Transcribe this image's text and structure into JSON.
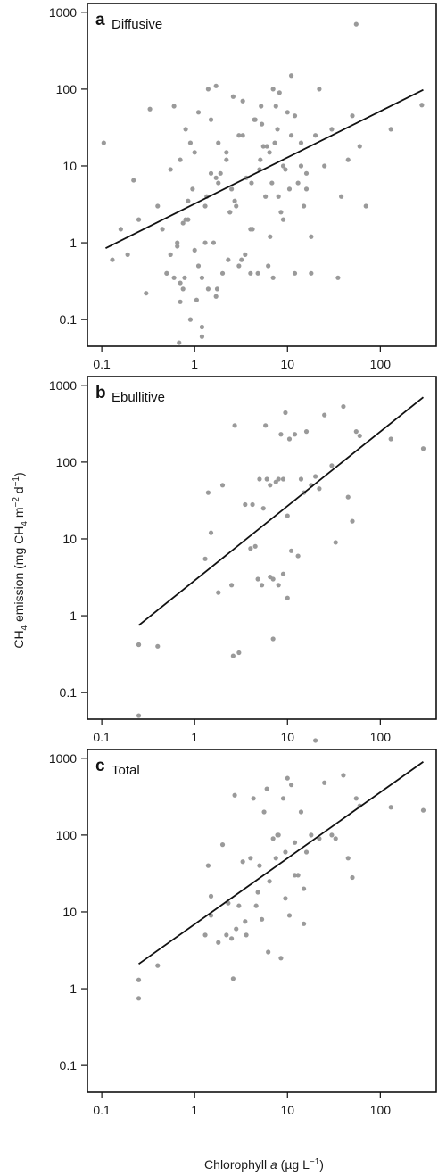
{
  "figure": {
    "ylabel_parts": [
      "CH",
      "4",
      " emission (mg CH",
      "4",
      " m",
      "−2",
      " d",
      "−1",
      ")"
    ],
    "xlabel_parts": [
      "Chlorophyll ",
      "a",
      " (µg L",
      "−1",
      ")"
    ]
  },
  "chart_data": [
    {
      "type": "scatter",
      "panel_letter": "a",
      "title": "Diffusive",
      "x_scale": "log",
      "y_scale": "log",
      "xlim": [
        0.07,
        400
      ],
      "ylim": [
        0.045,
        1300
      ],
      "x_ticks": [
        0.1,
        1,
        10,
        100
      ],
      "x_tick_labels": [
        "0.1",
        "1",
        "10",
        "100"
      ],
      "y_ticks": [
        0.1,
        1,
        10,
        100,
        1000
      ],
      "y_tick_labels": [
        "0.1",
        "1",
        "10",
        "100",
        "1000"
      ],
      "grid": false,
      "legend": "none",
      "fit_line": {
        "x": [
          0.11,
          290
        ],
        "y": [
          0.85,
          98
        ]
      },
      "points": {
        "x": [
          0.105,
          0.13,
          0.16,
          0.19,
          0.22,
          0.25,
          0.3,
          0.33,
          0.4,
          0.45,
          0.5,
          0.55,
          0.6,
          0.65,
          0.7,
          0.75,
          0.8,
          0.85,
          0.9,
          0.95,
          1,
          1.1,
          1.2,
          1.3,
          1.4,
          1.5,
          1.6,
          1.7,
          1.8,
          2,
          2.2,
          2.4,
          2.6,
          2.8,
          3,
          3.3,
          3.6,
          4,
          4.4,
          4.8,
          5.2,
          5.8,
          6.4,
          7,
          7.8,
          8.5,
          9.5,
          10.5,
          12,
          14,
          16,
          18,
          20,
          25,
          30,
          38,
          45,
          50,
          55,
          60,
          70,
          130,
          280,
          0.6,
          0.7,
          0.8,
          1,
          1.2,
          1.5,
          1.8,
          2.2,
          2.7,
          3.3,
          4,
          5,
          6,
          7,
          8,
          9,
          10,
          11,
          13,
          15,
          0.5,
          0.65,
          0.9,
          1.3,
          1.7,
          2.5,
          3.5,
          4.5,
          5.5,
          6.5,
          7.5,
          9,
          11,
          14,
          18,
          0.7,
          0.85,
          1.1,
          1.4,
          1.9,
          2.3,
          3,
          4.2,
          5.3,
          6.8,
          8.2,
          12,
          16,
          22,
          35,
          0.55,
          0.75,
          1.05,
          1.35,
          1.75,
          2.4,
          3.2,
          4.1,
          5.1,
          6.2,
          7.3,
          0.68,
          0.78,
          1.2,
          1.7
        ],
        "y": [
          20,
          0.6,
          1.5,
          0.7,
          6.5,
          2,
          0.22,
          55,
          3,
          1.5,
          0.4,
          9,
          60,
          1,
          0.3,
          0.25,
          30,
          2,
          0.1,
          5,
          15,
          0.5,
          0.06,
          3,
          100,
          8,
          1,
          0.2,
          20,
          0.4,
          12,
          2.5,
          80,
          3,
          0.5,
          25,
          7,
          1.5,
          40,
          0.4,
          60,
          4,
          15,
          100,
          30,
          2.5,
          9,
          5,
          45,
          20,
          8,
          1.2,
          25,
          10,
          30,
          4,
          12,
          45,
          700,
          18,
          3,
          30,
          62,
          0.35,
          12,
          2,
          0.8,
          0.35,
          40,
          6,
          15,
          3.5,
          70,
          0.4,
          9,
          18,
          0.35,
          4,
          10,
          50,
          150,
          6,
          3,
          0.4,
          0.9,
          20,
          1,
          7,
          5,
          0.7,
          40,
          18,
          1.2,
          60,
          2,
          25,
          10,
          0.4,
          0.17,
          3.5,
          50,
          0.25,
          8,
          0.6,
          25,
          1.5,
          35,
          6,
          90,
          0.4,
          5,
          100,
          0.35,
          0.7,
          1.8,
          0.18,
          4,
          0.25,
          2.5,
          0.6,
          6,
          12,
          0.5,
          20,
          0.05,
          0.35,
          0.08,
          110
        ]
      }
    },
    {
      "type": "scatter",
      "panel_letter": "b",
      "title": "Ebullitive",
      "x_scale": "log",
      "y_scale": "log",
      "xlim": [
        0.07,
        400
      ],
      "ylim": [
        0.045,
        1300
      ],
      "x_ticks": [
        0.1,
        1,
        10,
        100
      ],
      "x_tick_labels": [
        "0.1",
        "1",
        "10",
        "100"
      ],
      "y_ticks": [
        0.1,
        1,
        10,
        100,
        1000
      ],
      "y_tick_labels": [
        "0.1",
        "1",
        "10",
        "100",
        "1000"
      ],
      "grid": false,
      "legend": "none",
      "fit_line": {
        "x": [
          0.25,
          290
        ],
        "y": [
          0.75,
          700
        ]
      },
      "points": {
        "x": [
          0.25,
          0.25,
          0.25,
          0.4,
          1.3,
          1.4,
          1.5,
          1.8,
          2,
          2.5,
          2.6,
          2.7,
          3,
          3.5,
          4,
          4.2,
          4.5,
          4.8,
          5,
          5.3,
          5.5,
          5.8,
          6,
          6.5,
          7,
          7.5,
          8,
          8.5,
          9,
          9.5,
          10,
          10.5,
          11,
          12,
          13,
          14,
          15,
          16,
          18,
          20,
          22,
          25,
          30,
          33,
          40,
          45,
          50,
          55,
          60,
          130,
          290,
          8,
          9,
          10,
          7,
          6.5
        ],
        "y": [
          0.05,
          0.42,
          0.42,
          0.4,
          5.5,
          40,
          12,
          2,
          50,
          2.5,
          0.3,
          300,
          0.33,
          28,
          7.5,
          28,
          8,
          3,
          60,
          2.5,
          25,
          300,
          60,
          50,
          3,
          55,
          60,
          230,
          3.5,
          440,
          1.7,
          200,
          7,
          230,
          6,
          60,
          40,
          250,
          50,
          65,
          45,
          410,
          90,
          9,
          530,
          35,
          17,
          250,
          220,
          200,
          150,
          2.5,
          60,
          20,
          0.5,
          3.2
        ]
      }
    },
    {
      "type": "scatter",
      "panel_letter": "c",
      "title": "Total",
      "x_scale": "log",
      "y_scale": "log",
      "xlim": [
        0.07,
        400
      ],
      "ylim": [
        0.045,
        1300
      ],
      "x_ticks": [
        0.1,
        1,
        10,
        100
      ],
      "x_tick_labels": [
        "0.1",
        "1",
        "10",
        "100"
      ],
      "y_ticks": [
        0.1,
        1,
        10,
        100,
        1000
      ],
      "y_tick_labels": [
        "0.1",
        "1",
        "10",
        "100",
        "1000"
      ],
      "grid": false,
      "legend": "none",
      "fit_line": {
        "x": [
          0.25,
          290
        ],
        "y": [
          2.1,
          900
        ]
      },
      "points": {
        "x": [
          0.25,
          0.25,
          0.4,
          1.3,
          1.4,
          1.5,
          1.8,
          2,
          2.2,
          2.5,
          2.6,
          2.7,
          2.8,
          3,
          3.3,
          3.6,
          4,
          4.3,
          4.6,
          5,
          5.3,
          5.6,
          6,
          6.4,
          7,
          7.5,
          8,
          8.5,
          9,
          9.5,
          10,
          10.5,
          11,
          12,
          13,
          14,
          15,
          16,
          18,
          20,
          22,
          25,
          30,
          33,
          40,
          45,
          50,
          55,
          60,
          130,
          290,
          1.5,
          2.3,
          3.5,
          4.8,
          6.2,
          7.8,
          9.5,
          12,
          15
        ],
        "y": [
          0.75,
          1.3,
          2,
          5,
          40,
          16,
          4,
          75,
          5,
          4.5,
          1.35,
          330,
          6,
          12,
          45,
          5,
          50,
          300,
          12,
          40,
          8,
          200,
          400,
          25,
          90,
          50,
          100,
          2.5,
          300,
          60,
          550,
          9,
          450,
          80,
          30,
          200,
          20,
          60,
          100,
          1700,
          90,
          480,
          100,
          90,
          600,
          50,
          28,
          300,
          240,
          230,
          210,
          9,
          13,
          7.5,
          18,
          3,
          100,
          15,
          30,
          7
        ]
      }
    }
  ]
}
